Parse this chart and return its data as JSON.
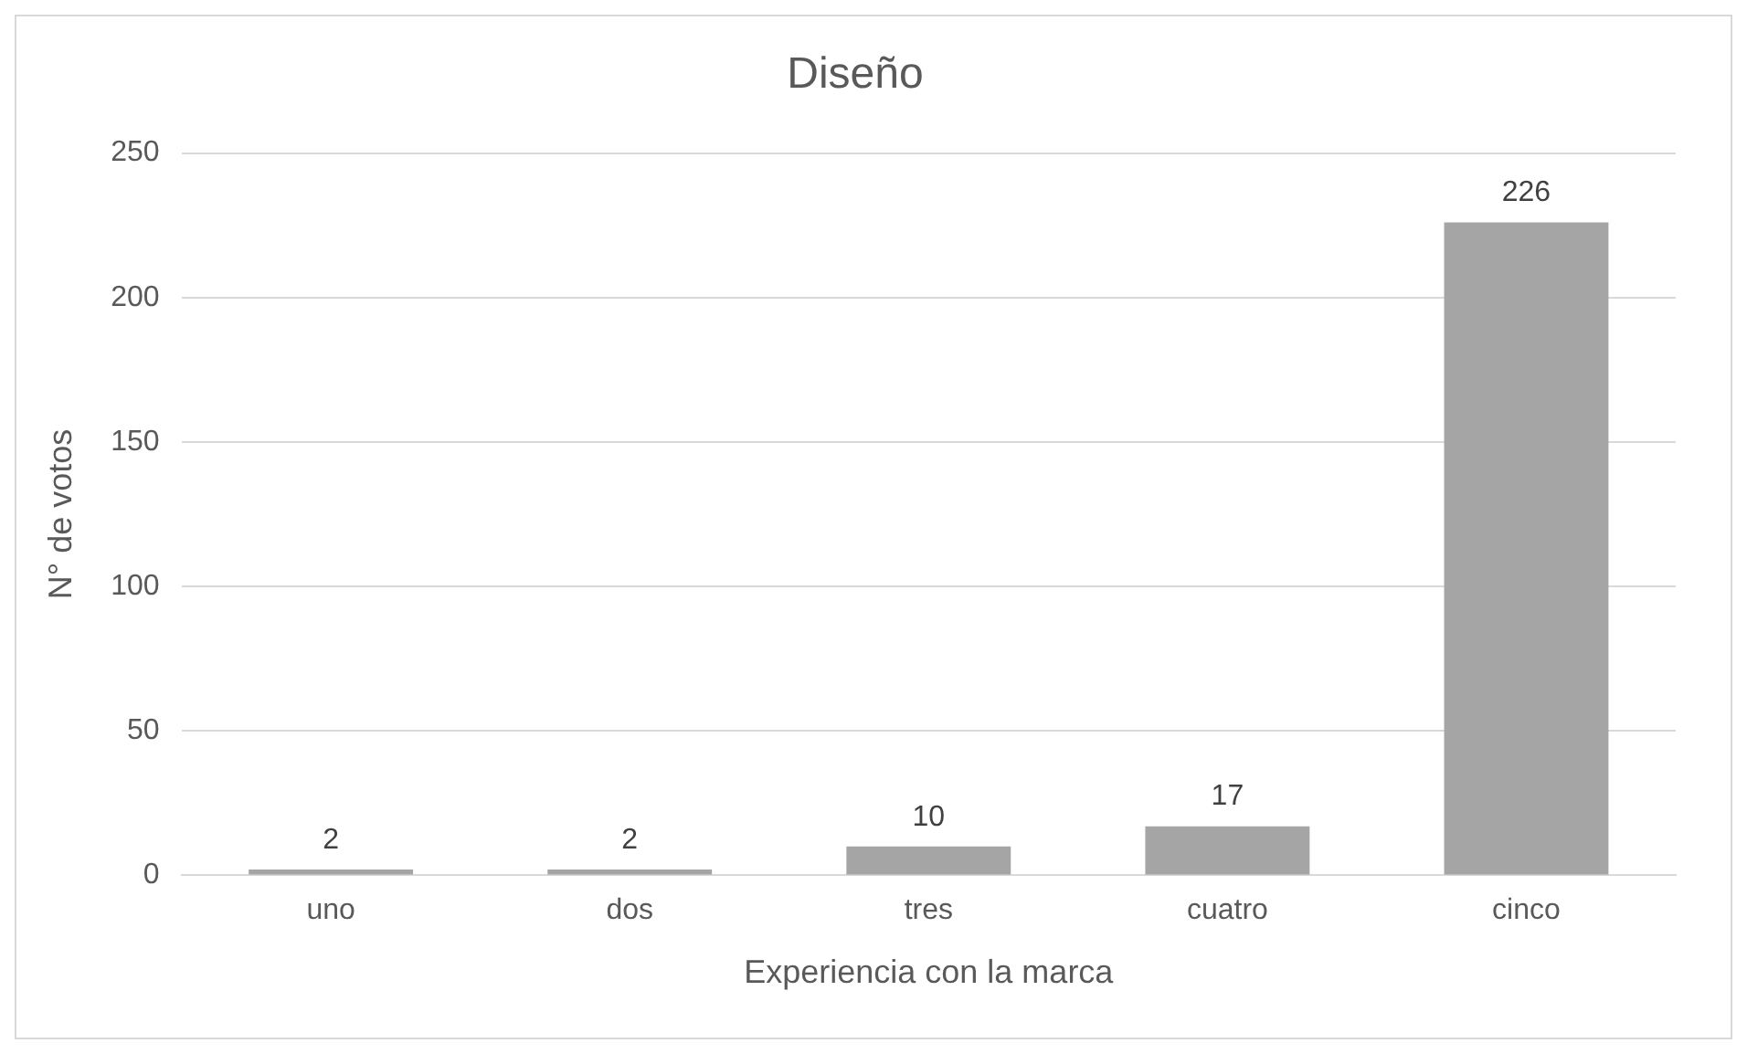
{
  "chart_data": {
    "type": "bar",
    "title": "Diseño",
    "xlabel": "Experiencia con la marca",
    "ylabel": "N° de votos",
    "categories": [
      "uno",
      "dos",
      "tres",
      "cuatro",
      "cinco"
    ],
    "values": [
      2,
      2,
      10,
      17,
      226
    ],
    "color": "#a5a5a5",
    "ylim": [
      0,
      250
    ],
    "yticks": [
      0,
      50,
      100,
      150,
      200,
      250
    ],
    "grid": "y",
    "legend": false,
    "data_labels": true
  }
}
